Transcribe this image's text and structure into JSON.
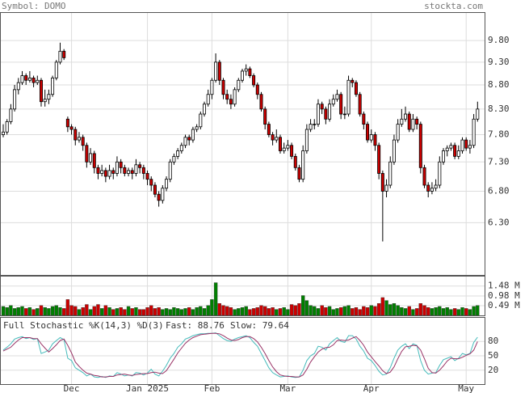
{
  "header": {
    "symbol": "Symbol: DOMO",
    "site": "stockta.com"
  },
  "chart_data": [
    {
      "type": "candlestick",
      "log_scale": true,
      "grid": true,
      "up_color": "#ffffff",
      "down_color": "#cc0000",
      "ylim": [
        5.55,
        10.5
      ],
      "yticks": [
        {
          "value": 9.8,
          "label": "9.80"
        },
        {
          "value": 9.3,
          "label": "9.30"
        },
        {
          "value": 8.8,
          "label": "8.80"
        },
        {
          "value": 8.3,
          "label": "8.30"
        },
        {
          "value": 7.8,
          "label": "7.80"
        },
        {
          "value": 7.3,
          "label": "7.30"
        },
        {
          "value": 6.8,
          "label": "6.80"
        },
        {
          "value": 6.3,
          "label": "6.30"
        }
      ],
      "categories": [
        null,
        null,
        null,
        null,
        null,
        null,
        null,
        null,
        null,
        null,
        null,
        null,
        null,
        null,
        null,
        null,
        null,
        null,
        "Dec",
        null,
        null,
        null,
        null,
        null,
        null,
        null,
        null,
        null,
        null,
        null,
        null,
        null,
        null,
        null,
        null,
        null,
        null,
        null,
        "Jan 2025",
        null,
        null,
        null,
        null,
        null,
        null,
        null,
        null,
        null,
        null,
        null,
        null,
        null,
        null,
        null,
        null,
        "Feb",
        null,
        null,
        null,
        null,
        null,
        null,
        null,
        null,
        null,
        null,
        null,
        null,
        null,
        null,
        null,
        null,
        null,
        null,
        null,
        "Mar",
        null,
        null,
        null,
        null,
        null,
        null,
        null,
        null,
        null,
        null,
        null,
        null,
        null,
        null,
        null,
        null,
        null,
        null,
        null,
        null,
        null,
        "Apr",
        null,
        null,
        null,
        null,
        null,
        null,
        null,
        null,
        null,
        null,
        null,
        null,
        null,
        null,
        null,
        null,
        null,
        null,
        null,
        null,
        null,
        null,
        null,
        null,
        "May",
        null,
        null,
        null,
        null,
        null
      ],
      "ohlc": [
        [
          7.8,
          8.0,
          7.75,
          7.85
        ],
        [
          7.85,
          8.1,
          7.8,
          8.05
        ],
        [
          8.05,
          8.4,
          8.0,
          8.3
        ],
        [
          8.3,
          8.8,
          8.25,
          8.7
        ],
        [
          8.7,
          8.95,
          8.6,
          8.85
        ],
        [
          8.85,
          9.1,
          8.8,
          9.0
        ],
        [
          9.0,
          9.05,
          8.8,
          8.9
        ],
        [
          8.9,
          9.1,
          8.85,
          8.95
        ],
        [
          8.95,
          9.0,
          8.75,
          8.85
        ],
        [
          8.85,
          9.0,
          8.8,
          8.9
        ],
        [
          8.9,
          8.95,
          8.35,
          8.45
        ],
        [
          8.45,
          8.7,
          8.35,
          8.5
        ],
        [
          8.5,
          8.7,
          8.4,
          8.6
        ],
        [
          8.6,
          9.0,
          8.55,
          8.95
        ],
        [
          8.95,
          9.35,
          8.9,
          9.3
        ],
        [
          9.3,
          9.75,
          9.25,
          9.55
        ],
        [
          9.55,
          9.6,
          9.35,
          9.4
        ],
        [
          8.1,
          8.15,
          7.85,
          7.95
        ],
        [
          7.95,
          8.0,
          7.8,
          7.9
        ],
        [
          7.9,
          7.95,
          7.6,
          7.7
        ],
        [
          7.7,
          7.85,
          7.65,
          7.75
        ],
        [
          7.75,
          7.8,
          7.5,
          7.6
        ],
        [
          7.6,
          7.65,
          7.2,
          7.3
        ],
        [
          7.3,
          7.55,
          7.25,
          7.45
        ],
        [
          7.45,
          7.5,
          7.1,
          7.2
        ],
        [
          7.2,
          7.25,
          7.0,
          7.1
        ],
        [
          7.1,
          7.25,
          7.05,
          7.15
        ],
        [
          7.15,
          7.2,
          6.95,
          7.05
        ],
        [
          7.05,
          7.25,
          7.0,
          7.15
        ],
        [
          7.15,
          7.2,
          7.0,
          7.1
        ],
        [
          7.1,
          7.4,
          7.05,
          7.3
        ],
        [
          7.3,
          7.35,
          7.1,
          7.2
        ],
        [
          7.2,
          7.25,
          7.05,
          7.1
        ],
        [
          7.1,
          7.2,
          7.05,
          7.15
        ],
        [
          7.15,
          7.2,
          7.0,
          7.1
        ],
        [
          7.1,
          7.35,
          7.05,
          7.25
        ],
        [
          7.25,
          7.3,
          7.1,
          7.2
        ],
        [
          7.2,
          7.25,
          7.0,
          7.1
        ],
        [
          7.1,
          7.15,
          6.9,
          7.0
        ],
        [
          7.0,
          7.05,
          6.8,
          6.9
        ],
        [
          6.9,
          6.95,
          6.7,
          6.75
        ],
        [
          6.75,
          6.8,
          6.55,
          6.65
        ],
        [
          6.65,
          6.9,
          6.6,
          6.85
        ],
        [
          6.85,
          7.05,
          6.8,
          7.0
        ],
        [
          7.0,
          7.35,
          6.95,
          7.3
        ],
        [
          7.3,
          7.45,
          7.25,
          7.4
        ],
        [
          7.4,
          7.55,
          7.35,
          7.5
        ],
        [
          7.5,
          7.65,
          7.45,
          7.6
        ],
        [
          7.6,
          7.8,
          7.55,
          7.75
        ],
        [
          7.75,
          7.8,
          7.6,
          7.7
        ],
        [
          7.7,
          7.95,
          7.65,
          7.9
        ],
        [
          7.9,
          8.0,
          7.85,
          7.95
        ],
        [
          7.95,
          8.25,
          7.9,
          8.2
        ],
        [
          8.2,
          8.45,
          8.15,
          8.4
        ],
        [
          8.4,
          8.7,
          8.35,
          8.6
        ],
        [
          8.6,
          8.95,
          8.5,
          8.9
        ],
        [
          8.9,
          9.5,
          8.85,
          9.3
        ],
        [
          9.3,
          9.35,
          8.8,
          8.9
        ],
        [
          8.9,
          8.95,
          8.5,
          8.6
        ],
        [
          8.6,
          8.7,
          8.4,
          8.5
        ],
        [
          8.5,
          8.6,
          8.3,
          8.4
        ],
        [
          8.4,
          8.75,
          8.35,
          8.7
        ],
        [
          8.7,
          8.95,
          8.65,
          8.9
        ],
        [
          8.9,
          9.15,
          8.85,
          9.1
        ],
        [
          9.1,
          9.25,
          9.0,
          9.15
        ],
        [
          9.15,
          9.2,
          8.95,
          9.0
        ],
        [
          9.0,
          9.05,
          8.75,
          8.8
        ],
        [
          8.8,
          8.85,
          8.5,
          8.6
        ],
        [
          8.6,
          8.65,
          8.25,
          8.3
        ],
        [
          8.3,
          8.35,
          7.9,
          8.0
        ],
        [
          8.0,
          8.05,
          7.75,
          7.8
        ],
        [
          7.8,
          7.85,
          7.6,
          7.7
        ],
        [
          7.7,
          7.9,
          7.65,
          7.75
        ],
        [
          7.75,
          7.8,
          7.45,
          7.5
        ],
        [
          7.5,
          7.65,
          7.45,
          7.55
        ],
        [
          7.55,
          7.7,
          7.5,
          7.6
        ],
        [
          7.6,
          7.65,
          7.35,
          7.4
        ],
        [
          7.4,
          7.45,
          7.15,
          7.2
        ],
        [
          7.2,
          7.25,
          6.95,
          7.0
        ],
        [
          7.0,
          7.6,
          6.95,
          7.5
        ],
        [
          7.5,
          8.0,
          7.45,
          7.9
        ],
        [
          7.9,
          8.1,
          7.85,
          8.0
        ],
        [
          8.0,
          8.1,
          7.9,
          8.0
        ],
        [
          8.0,
          8.5,
          7.95,
          8.4
        ],
        [
          8.4,
          8.45,
          8.2,
          8.3
        ],
        [
          8.3,
          8.35,
          8.0,
          8.1
        ],
        [
          8.1,
          8.5,
          8.05,
          8.4
        ],
        [
          8.4,
          8.6,
          8.35,
          8.5
        ],
        [
          8.5,
          8.7,
          8.45,
          8.6
        ],
        [
          8.6,
          8.65,
          8.1,
          8.2
        ],
        [
          8.2,
          8.35,
          8.1,
          8.2
        ],
        [
          8.2,
          9.0,
          8.15,
          8.9
        ],
        [
          8.9,
          8.95,
          8.75,
          8.85
        ],
        [
          8.85,
          8.9,
          8.55,
          8.6
        ],
        [
          8.6,
          8.65,
          8.15,
          8.2
        ],
        [
          8.2,
          8.25,
          7.9,
          8.0
        ],
        [
          8.0,
          8.05,
          7.65,
          7.7
        ],
        [
          7.7,
          7.9,
          7.65,
          7.8
        ],
        [
          7.8,
          7.85,
          7.5,
          7.6
        ],
        [
          7.6,
          7.65,
          7.0,
          7.1
        ],
        [
          7.1,
          7.15,
          6.02,
          6.8
        ],
        [
          6.8,
          7.0,
          6.7,
          6.9
        ],
        [
          6.9,
          7.4,
          6.85,
          7.3
        ],
        [
          7.3,
          7.8,
          7.25,
          7.7
        ],
        [
          7.7,
          8.1,
          7.65,
          8.0
        ],
        [
          8.0,
          8.3,
          7.95,
          8.1
        ],
        [
          8.1,
          8.35,
          8.05,
          8.2
        ],
        [
          8.2,
          8.25,
          7.85,
          7.9
        ],
        [
          7.9,
          8.2,
          7.85,
          8.1
        ],
        [
          8.1,
          8.15,
          7.9,
          8.0
        ],
        [
          8.0,
          8.05,
          7.1,
          7.2
        ],
        [
          7.2,
          7.25,
          6.85,
          6.9
        ],
        [
          6.9,
          6.95,
          6.7,
          6.8
        ],
        [
          6.8,
          6.95,
          6.75,
          6.85
        ],
        [
          6.85,
          7.0,
          6.8,
          6.9
        ],
        [
          6.9,
          7.4,
          6.85,
          7.3
        ],
        [
          7.3,
          7.55,
          7.25,
          7.5
        ],
        [
          7.5,
          7.6,
          7.4,
          7.55
        ],
        [
          7.55,
          7.65,
          7.5,
          7.6
        ],
        [
          7.6,
          7.65,
          7.35,
          7.4
        ],
        [
          7.4,
          7.6,
          7.35,
          7.5
        ],
        [
          7.5,
          7.75,
          7.45,
          7.7
        ],
        [
          7.7,
          7.75,
          7.5,
          7.55
        ],
        [
          7.55,
          7.7,
          7.45,
          7.6
        ],
        [
          7.6,
          8.2,
          7.55,
          8.1
        ],
        [
          8.1,
          8.45,
          8.05,
          8.3
        ]
      ]
    },
    {
      "type": "bar",
      "up_color": "#008000",
      "down_color": "#cc0000",
      "ylim": [
        0,
        2.0
      ],
      "yticks": [
        {
          "value": 1.48,
          "label": "1.48 M"
        },
        {
          "value": 0.98,
          "label": "0.98 M"
        },
        {
          "value": 0.49,
          "label": "0.49 M"
        }
      ],
      "values": [
        0.45,
        0.4,
        0.5,
        0.35,
        0.4,
        0.45,
        0.35,
        0.4,
        0.3,
        0.35,
        0.5,
        0.4,
        0.35,
        0.45,
        0.5,
        0.4,
        0.35,
        0.8,
        0.5,
        0.45,
        0.3,
        0.4,
        0.55,
        0.3,
        0.45,
        0.55,
        0.35,
        0.5,
        0.4,
        0.3,
        0.35,
        0.4,
        0.3,
        0.45,
        0.35,
        0.4,
        0.3,
        0.3,
        0.4,
        0.5,
        0.35,
        0.4,
        0.3,
        0.35,
        0.3,
        0.4,
        0.35,
        0.3,
        0.35,
        0.4,
        0.3,
        0.4,
        0.45,
        0.35,
        0.5,
        0.8,
        1.65,
        0.6,
        0.5,
        0.45,
        0.4,
        0.3,
        0.35,
        0.4,
        0.45,
        0.3,
        0.35,
        0.4,
        0.5,
        0.45,
        0.35,
        0.4,
        0.3,
        0.35,
        0.4,
        0.3,
        0.55,
        0.5,
        0.6,
        1.0,
        0.75,
        0.5,
        0.45,
        0.35,
        0.5,
        0.4,
        0.45,
        0.3,
        0.35,
        0.4,
        0.45,
        0.5,
        0.35,
        0.4,
        0.3,
        0.45,
        0.4,
        0.5,
        0.45,
        0.6,
        0.9,
        0.75,
        0.55,
        0.6,
        0.5,
        0.4,
        0.35,
        0.45,
        0.3,
        0.35,
        0.6,
        0.5,
        0.4,
        0.35,
        0.4,
        0.45,
        0.35,
        0.4,
        0.3,
        0.35,
        0.3,
        0.4,
        0.35,
        0.3,
        0.45,
        0.5
      ]
    },
    {
      "type": "line",
      "title": "Full Stochastic %K(14,3) %D(3)",
      "ylim": [
        -9,
        131
      ],
      "yticks": [
        80,
        50,
        20
      ],
      "series": [
        {
          "name": "Fast:",
          "color": "#44bbbb",
          "values": [
            62,
            68,
            75,
            85,
            88,
            90,
            86,
            88,
            84,
            86,
            55,
            58,
            62,
            75,
            82,
            88,
            84,
            45,
            40,
            25,
            20,
            15,
            8,
            12,
            6,
            5,
            7,
            5,
            8,
            7,
            15,
            12,
            8,
            10,
            8,
            15,
            14,
            10,
            14,
            22,
            12,
            8,
            18,
            30,
            45,
            55,
            68,
            75,
            85,
            88,
            92,
            94,
            96,
            96,
            97,
            97,
            98,
            92,
            86,
            82,
            80,
            85,
            88,
            90,
            92,
            88,
            78,
            70,
            55,
            40,
            25,
            15,
            10,
            6,
            7,
            8,
            6,
            5,
            6,
            20,
            40,
            50,
            55,
            70,
            68,
            62,
            75,
            82,
            88,
            80,
            78,
            92,
            92,
            85,
            70,
            60,
            45,
            40,
            30,
            18,
            10,
            12,
            25,
            45,
            62,
            70,
            75,
            65,
            75,
            72,
            40,
            20,
            12,
            14,
            15,
            30,
            42,
            45,
            48,
            40,
            45,
            55,
            52,
            55,
            78,
            88.76
          ]
        },
        {
          "name": "Slow:",
          "color": "#993366",
          "values": [
            60,
            64,
            68,
            76,
            83,
            88,
            88,
            88,
            86,
            86,
            75,
            66,
            58,
            65,
            73,
            82,
            85,
            72,
            56,
            37,
            28,
            20,
            14,
            12,
            9,
            8,
            6,
            6,
            7,
            7,
            10,
            11,
            12,
            10,
            9,
            11,
            12,
            13,
            13,
            15,
            16,
            14,
            13,
            19,
            31,
            43,
            56,
            66,
            76,
            83,
            88,
            91,
            94,
            95,
            96,
            97,
            97,
            96,
            92,
            87,
            83,
            82,
            84,
            88,
            90,
            90,
            86,
            79,
            68,
            55,
            40,
            27,
            17,
            10,
            8,
            7,
            7,
            6,
            6,
            10,
            22,
            37,
            48,
            58,
            64,
            67,
            68,
            73,
            82,
            83,
            82,
            83,
            87,
            90,
            82,
            72,
            58,
            48,
            38,
            29,
            19,
            13,
            16,
            27,
            44,
            59,
            69,
            70,
            72,
            71,
            62,
            44,
            24,
            15,
            14,
            20,
            29,
            39,
            45,
            44,
            44,
            47,
            51,
            54,
            62,
            79.64
          ]
        }
      ]
    }
  ]
}
